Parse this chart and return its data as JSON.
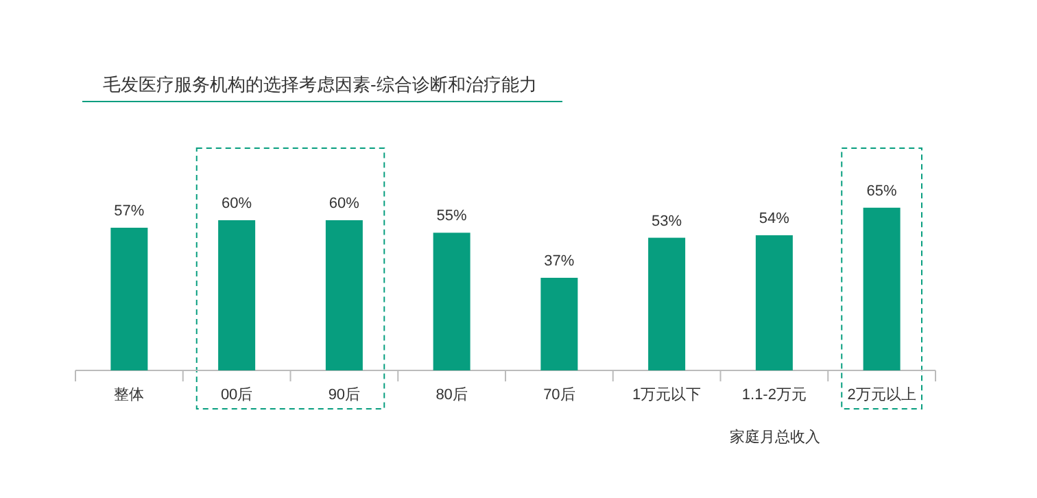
{
  "chart_data": {
    "type": "bar",
    "title": "毛发医疗服务机构的选择考虑因素-综合诊断和治疗能力",
    "categories": [
      "整体",
      "00后",
      "90后",
      "80后",
      "70后",
      "1万元以下",
      "1.1-2万元",
      "2万元以上"
    ],
    "values": [
      57,
      60,
      60,
      55,
      37,
      53,
      54,
      65
    ],
    "value_labels": [
      "57%",
      "60%",
      "60%",
      "55%",
      "37%",
      "53%",
      "54%",
      "65%"
    ],
    "color": "#079e7f",
    "annotations": [
      "家庭月总收入"
    ]
  }
}
